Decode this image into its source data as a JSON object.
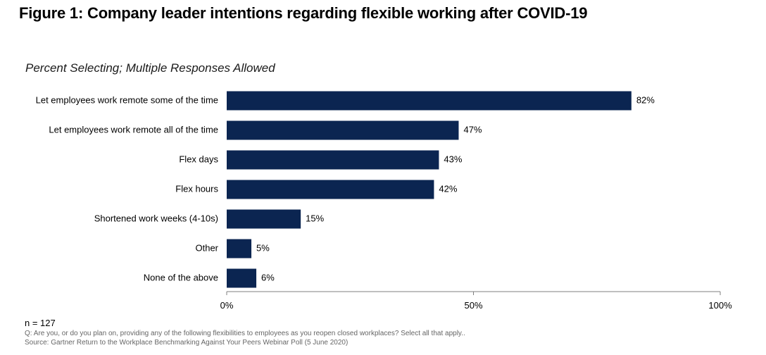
{
  "title": "Figure 1: Company leader intentions regarding flexible working after COVID-19",
  "subtitle": "Percent Selecting; Multiple Responses Allowed",
  "colors": {
    "bar": "#0b2551",
    "axis": "#7f7f7f",
    "text": "#000000"
  },
  "chart_data": {
    "type": "bar",
    "orientation": "horizontal",
    "categories": [
      "Let employees work remote some of the time",
      "Let employees work remote all of the time",
      "Flex days",
      "Flex hours",
      "Shortened work weeks (4-10s)",
      "Other",
      "None of the above"
    ],
    "values": [
      82,
      47,
      43,
      42,
      15,
      5,
      6
    ],
    "value_labels": [
      "82%",
      "47%",
      "43%",
      "42%",
      "15%",
      "5%",
      "6%"
    ],
    "xlim": [
      0,
      100
    ],
    "x_ticks": [
      0,
      50,
      100
    ],
    "x_tick_labels": [
      "0%",
      "50%",
      "100%"
    ],
    "grid": false,
    "legend": "none"
  },
  "footnotes": {
    "n": "n = 127",
    "question": "Q: Are you, or do you plan on, providing any of the following flexibilities to employees as you reopen closed workplaces? Select all that apply..",
    "source": "Source: Gartner Return to the Workplace Benchmarking Against Your Peers Webinar Poll (5 June 2020)"
  }
}
